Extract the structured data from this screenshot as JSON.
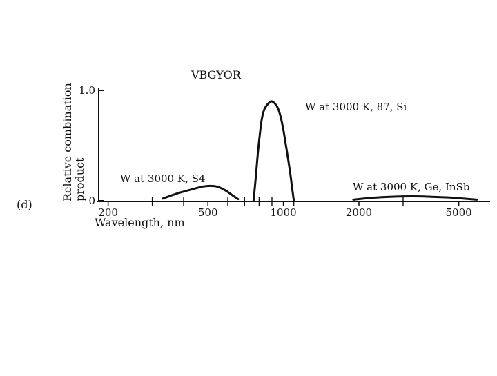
{
  "chart_data": {
    "type": "line",
    "panel_label": "(d)",
    "spectrum_label": "VBGYOR",
    "xlabel": "Wavelength, nm",
    "ylabel_lines": [
      "Relative combination",
      "product"
    ],
    "x_scale": "log",
    "xlim": [
      180,
      6500
    ],
    "ylim": [
      0,
      1.0
    ],
    "y_tick_labels": [
      "0",
      "1.0"
    ],
    "y_ticks": [
      0,
      1.0
    ],
    "x_tick_labels": [
      "200",
      "500",
      "1000",
      "2000",
      "5000"
    ],
    "x_ticks": [
      200,
      500,
      1000,
      2000,
      5000
    ],
    "x_minor_ticks": [
      300,
      400,
      600,
      700,
      800,
      900,
      1100,
      3000
    ],
    "series": [
      {
        "name": "W at 3000 K, S4",
        "x": [
          330,
          370,
          410,
          450,
          480,
          510,
          540,
          570,
          600,
          630,
          660
        ],
        "y": [
          0.02,
          0.06,
          0.09,
          0.115,
          0.13,
          0.135,
          0.13,
          0.11,
          0.08,
          0.045,
          0.015
        ]
      },
      {
        "name": "W at 3000 K, 87, Si",
        "x": [
          760,
          775,
          790,
          805,
          820,
          840,
          870,
          900,
          940,
          970,
          1000,
          1030,
          1060,
          1085,
          1100
        ],
        "y": [
          0.0,
          0.2,
          0.42,
          0.6,
          0.74,
          0.83,
          0.88,
          0.9,
          0.86,
          0.78,
          0.64,
          0.46,
          0.28,
          0.1,
          0.0
        ]
      },
      {
        "name": "W at 3000 K, Ge, InSb",
        "x": [
          1900,
          2200,
          2600,
          3000,
          3500,
          4000,
          4600,
          5200,
          5900
        ],
        "y": [
          0.01,
          0.025,
          0.035,
          0.04,
          0.04,
          0.035,
          0.03,
          0.02,
          0.01
        ]
      }
    ]
  }
}
